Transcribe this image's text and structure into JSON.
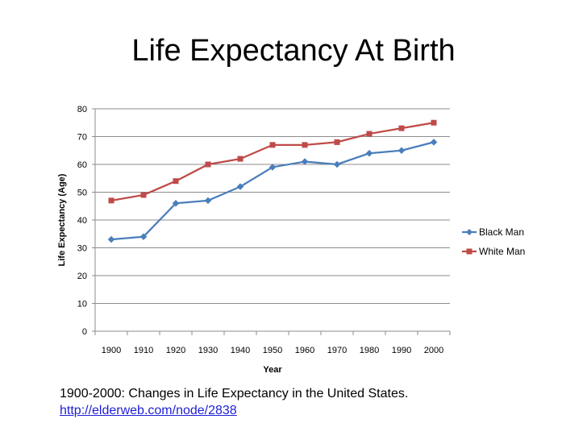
{
  "slide": {
    "title": "Life Expectancy At Birth",
    "caption_line1": "1900-2000: Changes in Life Expectancy in the United States.",
    "caption_link": "http://elderweb.com/node/2838"
  },
  "chart_data": {
    "type": "line",
    "title": "Life Expectancy At Birth",
    "xlabel": "Year",
    "ylabel": "Life Expectancy (Age)",
    "categories": [
      "1900",
      "1910",
      "1920",
      "1930",
      "1940",
      "1950",
      "1960",
      "1970",
      "1980",
      "1990",
      "2000"
    ],
    "ylim": [
      0,
      80
    ],
    "yticks": [
      0,
      10,
      20,
      30,
      40,
      50,
      60,
      70,
      80
    ],
    "grid": true,
    "legend": "right",
    "series": [
      {
        "name": "Black Man",
        "marker": "diamond",
        "color": "#4a7ebb",
        "values": [
          33,
          34,
          46,
          47,
          52,
          59,
          61,
          60,
          64,
          65,
          68
        ]
      },
      {
        "name": "White Man",
        "marker": "square",
        "color": "#be4b48",
        "values": [
          47,
          49,
          54,
          60,
          62,
          67,
          67,
          68,
          71,
          73,
          75
        ]
      }
    ]
  }
}
